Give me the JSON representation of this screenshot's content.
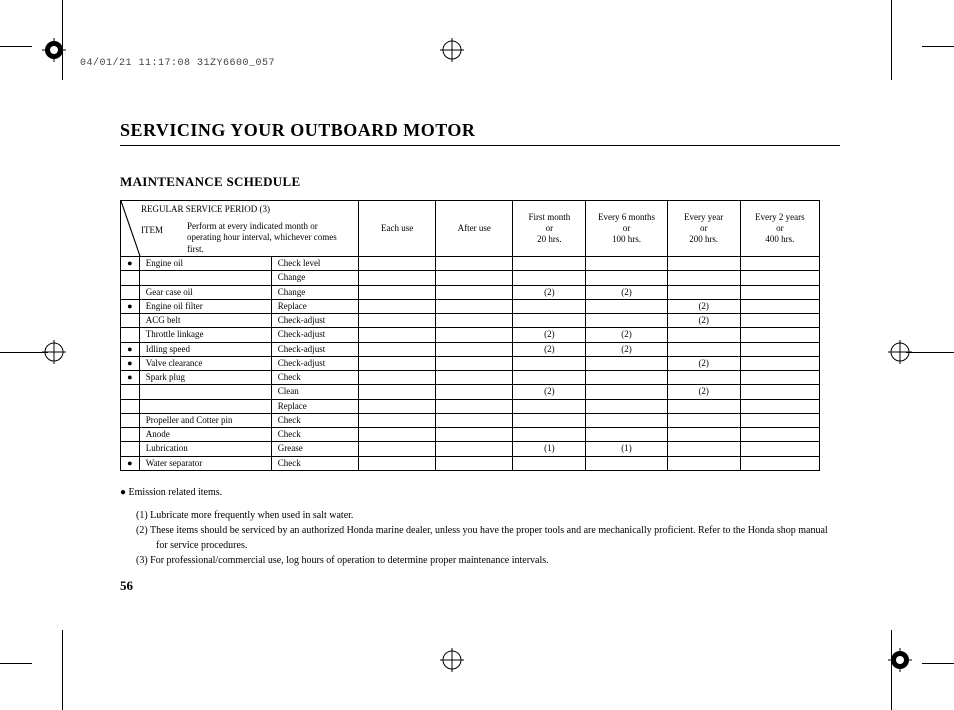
{
  "header_stamp": "04/01/21 11:17:08 31ZY6600_057",
  "title": "SERVICING YOUR OUTBOARD MOTOR",
  "subtitle": "MAINTENANCE SCHEDULE",
  "page_number": "56",
  "table": {
    "header_top": "REGULAR SERVICE PERIOD (3)",
    "header_item": "ITEM",
    "header_perform": "Perform at every indicated month or operating hour interval, whichever comes first.",
    "columns": [
      "Each use",
      "After use",
      "First month\nor\n20 hrs.",
      "Every 6 months\nor\n100 hrs.",
      "Every year\nor\n200 hrs.",
      "Every 2 years\nor\n400 hrs."
    ],
    "rows": [
      {
        "bullet": true,
        "item": "Engine oil",
        "action": "Check level",
        "cells": [
          "",
          "",
          "",
          "",
          "",
          ""
        ]
      },
      {
        "bullet": false,
        "item": "",
        "action": "Change",
        "cells": [
          "",
          "",
          "",
          "",
          "",
          ""
        ]
      },
      {
        "bullet": false,
        "item": "Gear case oil",
        "action": "Change",
        "cells": [
          "",
          "",
          "(2)",
          "(2)",
          "",
          ""
        ]
      },
      {
        "bullet": true,
        "item": "Engine oil filter",
        "action": "Replace",
        "cells": [
          "",
          "",
          "",
          "",
          "(2)",
          ""
        ]
      },
      {
        "bullet": false,
        "item": "ACG belt",
        "action": "Check-adjust",
        "cells": [
          "",
          "",
          "",
          "",
          "(2)",
          ""
        ]
      },
      {
        "bullet": false,
        "item": "Throttle linkage",
        "action": "Check-adjust",
        "cells": [
          "",
          "",
          "(2)",
          "(2)",
          "",
          ""
        ]
      },
      {
        "bullet": true,
        "item": "Idling speed",
        "action": "Check-adjust",
        "cells": [
          "",
          "",
          "(2)",
          "(2)",
          "",
          ""
        ]
      },
      {
        "bullet": true,
        "item": "Valve clearance",
        "action": "Check-adjust",
        "cells": [
          "",
          "",
          "",
          "",
          "(2)",
          ""
        ]
      },
      {
        "bullet": true,
        "item": "Spark plug",
        "action": "Check",
        "cells": [
          "",
          "",
          "",
          "",
          "",
          ""
        ]
      },
      {
        "bullet": false,
        "item": "",
        "action": "Clean",
        "cells": [
          "",
          "",
          "(2)",
          "",
          "(2)",
          ""
        ]
      },
      {
        "bullet": false,
        "item": "",
        "action": "Replace",
        "cells": [
          "",
          "",
          "",
          "",
          "",
          ""
        ]
      },
      {
        "bullet": false,
        "item": "Propeller and Cotter pin",
        "action": "Check",
        "cells": [
          "",
          "",
          "",
          "",
          "",
          ""
        ]
      },
      {
        "bullet": false,
        "item": "Anode",
        "action": "Check",
        "cells": [
          "",
          "",
          "",
          "",
          "",
          ""
        ]
      },
      {
        "bullet": false,
        "item": "Lubrication",
        "action": "Grease",
        "cells": [
          "",
          "",
          "(1)",
          "(1)",
          "",
          ""
        ]
      },
      {
        "bullet": true,
        "item": "Water separator",
        "action": "Check",
        "cells": [
          "",
          "",
          "",
          "",
          "",
          ""
        ]
      }
    ]
  },
  "notes": {
    "emission": "Emission related items.",
    "bullet": "●",
    "items": [
      {
        "n": "(1)",
        "text": "Lubricate more frequently when used in salt water."
      },
      {
        "n": "(2)",
        "text": "These items should be serviced by an authorized Honda marine dealer, unless you have the proper tools and are mechanically proficient. Refer to the Honda shop manual for service procedures."
      },
      {
        "n": "(3)",
        "text": "For professional/commercial use, log hours of operation to determine proper maintenance intervals."
      }
    ]
  },
  "colors": {
    "text": "#000000",
    "bg": "#ffffff",
    "stamp": "#444444"
  }
}
